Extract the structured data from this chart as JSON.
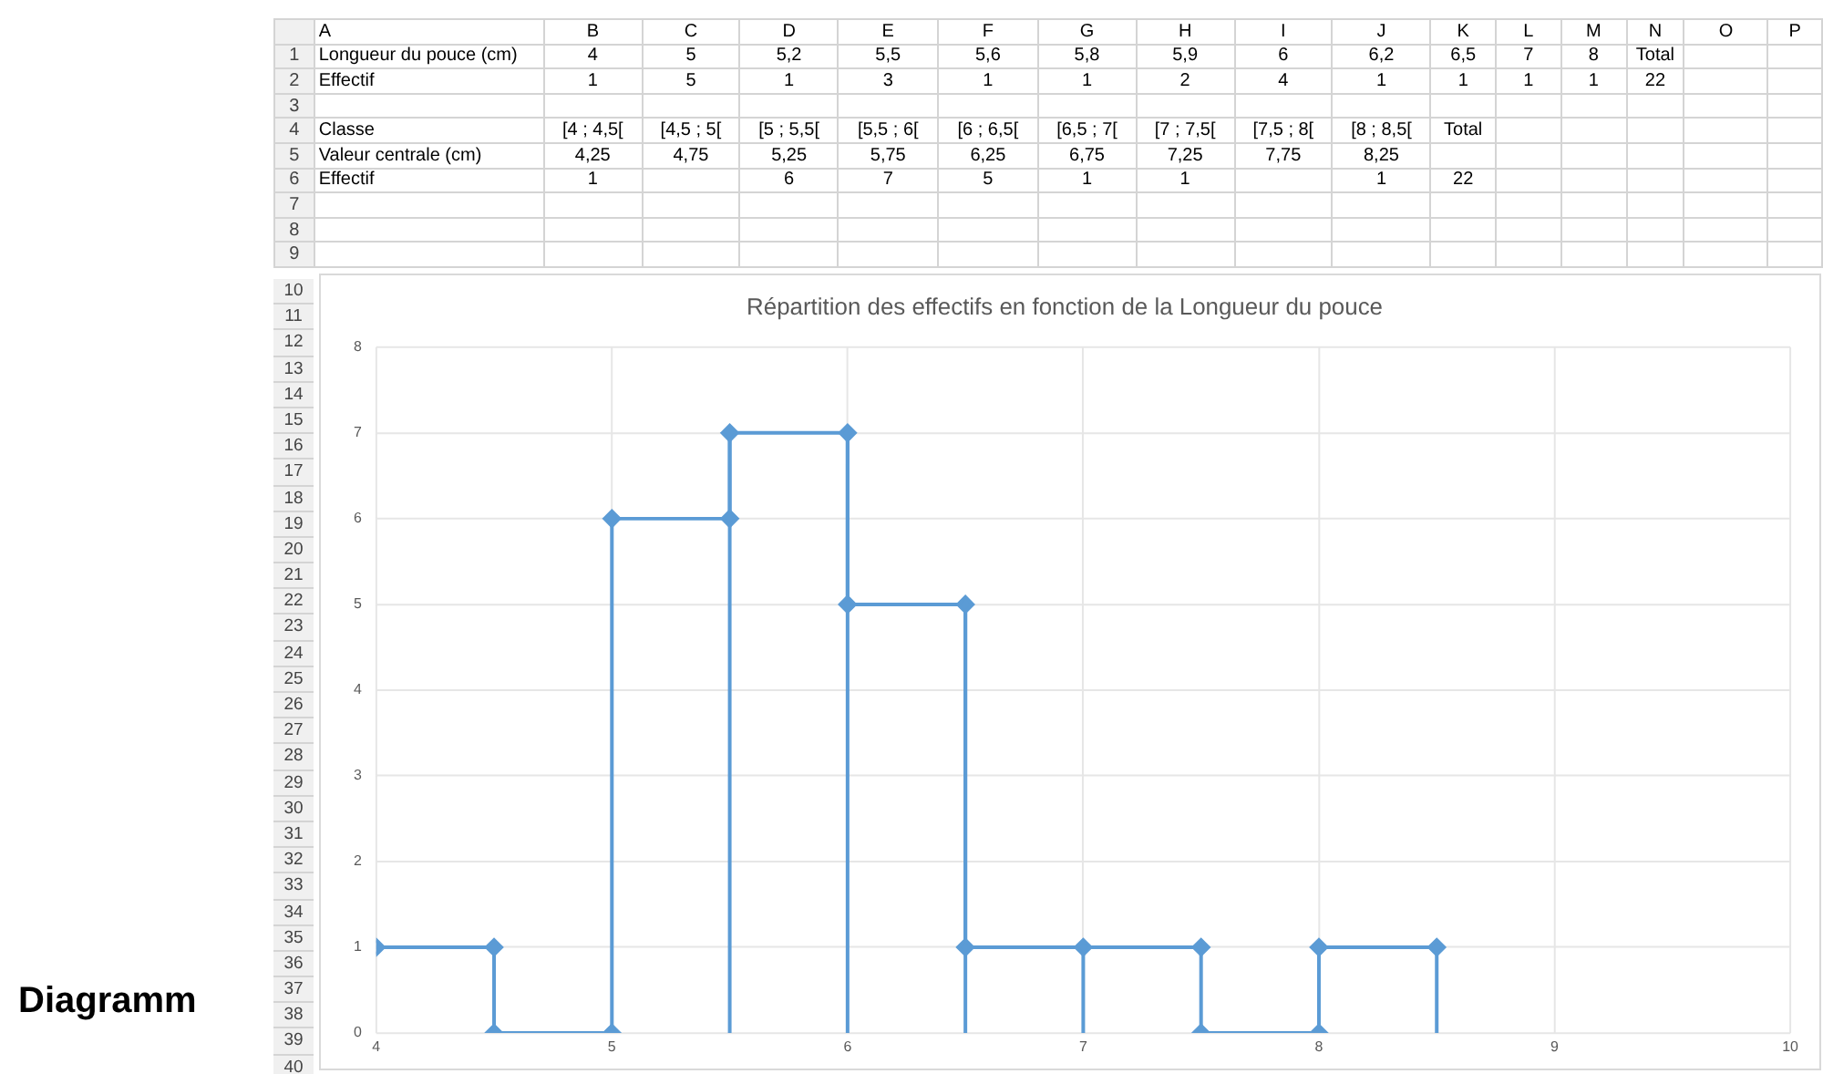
{
  "chart_data": {
    "type": "line",
    "title": "Répartition des effectifs en fonction de la Longueur du pouce",
    "xlim": [
      4,
      10
    ],
    "xticks": [
      4,
      5,
      6,
      7,
      8,
      9,
      10
    ],
    "ylim": [
      0,
      8
    ],
    "yticks": [
      0,
      1,
      2,
      3,
      4,
      5,
      6,
      7,
      8
    ],
    "grid": true,
    "legend": false,
    "line_style": "solid",
    "series": [
      {
        "color": "#5b9bd5",
        "marker": "diamond",
        "x": [
          4,
          4.5,
          4.5,
          5,
          5,
          5.5,
          5.5,
          6,
          6,
          6.5,
          6.5,
          7,
          7.5,
          7.5,
          8,
          8,
          8.5
        ],
        "values": [
          1,
          1,
          0,
          0,
          6,
          6,
          7,
          7,
          5,
          5,
          1,
          1,
          1,
          0,
          0,
          1,
          1
        ]
      },
      {
        "color": "#5b9bd5",
        "marker": "none",
        "x": [
          5.5,
          5.5,
          null,
          6,
          6,
          null,
          6.5,
          6.5,
          null,
          7,
          7,
          null,
          8.5,
          8.5
        ],
        "values": [
          0,
          7,
          null,
          0,
          7,
          null,
          0,
          5,
          null,
          0,
          1,
          null,
          0,
          1
        ]
      }
    ],
    "annotations": [
      "\tA\tB\tC\tD\tE\tF\tG\tH\tI\tJ\tK\tL\tM\tN\tO\tP",
      "1\tLongueur du pouce (cm)\t4\t5\t5,2\t5,5\t5,6\t5,8\t5,9\t6\t6,2\t6,5\t7\t8\tTotal\t\t",
      "2\tEffectif\t1\t5\t1\t3\t1\t1\t2\t4\t1\t1\t1\t1\t22\t\t",
      "3\t\t\t\t\t\t\t\t\t\t\t\t\t\t\t\t",
      "4\tClasse\t[4 ; 4,5[\t[4,5 ; 5[\t[5 ; 5,5[\t[5,5 ; 6[\t[6 ; 6,5[\t[6,5 ; 7[\t[7 ; 7,5[\t[7,5 ; 8[\t[8 ; 8,5[\tTotal\t\t\t\t\t",
      "5\tValeur centrale (cm)\t4,25\t4,75\t5,25\t5,75\t6,25\t6,75\t7,25\t7,75\t8,25\t\t\t\t\t\t",
      "6\tEffectif\t1\t\t6\t7\t5\t1\t1\t\t1\t22\t\t\t\t\t",
      "7\t\t\t\t\t\t\t\t\t\t\t\t\t\t\t\t",
      "8\t\t\t\t\t\t\t\t\t\t\t\t\t\t\t\t",
      "9\t\t\t\t\t\t\t\t\t\t\t\t\t\t\t\t",
      "10\t11\t12\t13\t14\t15\t16\t17\t18\t19\t20\t21\t22\t23\t24\t25\t26\t27\t28\t29\t30\t31\t32\t33\t34\t35\t36\t37\t38\t39\t40",
      "Diagramm"
    ]
  }
}
